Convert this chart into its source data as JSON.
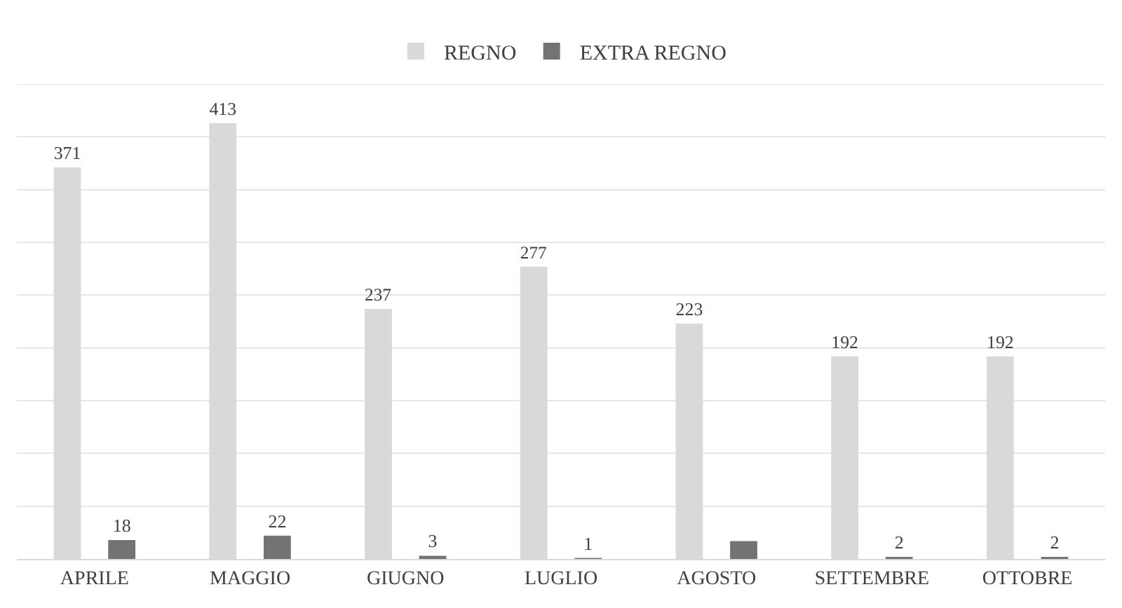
{
  "chart_data": {
    "type": "bar",
    "categories": [
      "APRILE",
      "MAGGIO",
      "GIUGNO",
      "LUGLIO",
      "AGOSTO",
      "SETTEMBRE",
      "OTTOBRE"
    ],
    "series": [
      {
        "name": "REGNO",
        "color": "#d9d9d9",
        "values": [
          371,
          413,
          237,
          277,
          223,
          192,
          192
        ],
        "value_labels": [
          "371",
          "413",
          "237",
          "277",
          "223",
          "192",
          "192"
        ]
      },
      {
        "name": "EXTRA REGNO",
        "color": "#737373",
        "values": [
          18,
          22,
          3,
          1,
          17,
          2,
          2
        ],
        "value_labels": [
          "18",
          "22",
          "3",
          "1",
          null,
          "2",
          "2"
        ]
      }
    ],
    "ylim": [
      0,
      450
    ],
    "yticks": [
      {
        "value": 0,
        "label": null
      },
      {
        "value": 50,
        "label": null
      },
      {
        "value": 100,
        "label": null
      },
      {
        "value": 150,
        "label": null
      },
      {
        "value": 200,
        "label": null
      },
      {
        "value": 250,
        "label": null
      },
      {
        "value": 300,
        "label": null
      },
      {
        "value": 350,
        "label": null
      },
      {
        "value": 400,
        "label": null
      },
      {
        "value": 450,
        "label": null
      }
    ],
    "grid": "y",
    "legend": "top",
    "tick_labels": "x"
  }
}
